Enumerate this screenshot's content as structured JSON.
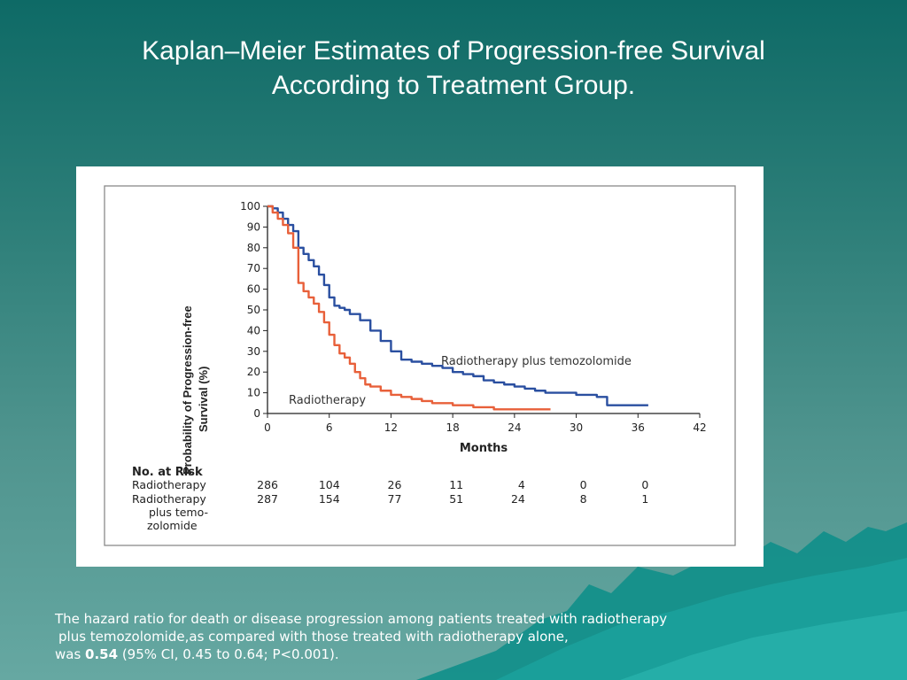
{
  "slide": {
    "title_line1": "Kaplan–Meier Estimates of Progression-free Survival",
    "title_line2": "According to Treatment Group.",
    "caption_line1": "The hazard ratio for death or disease progression among patients treated with radiotherapy",
    "caption_line2": "plus temozolomide,as compared with those treated with radiotherapy alone,",
    "caption_line3_prefix": "was ",
    "caption_hr": "0.54",
    "caption_line3_suffix": " (95% CI, 0.45 to 0.64; P<0.001)."
  },
  "colors": {
    "background_top": "#0e6a66",
    "background_bottom": "#66a8a2",
    "series_radiotherapy": "#e8603a",
    "series_combined": "#2a4fa0",
    "text": "#ffffff"
  },
  "chart_data": {
    "type": "line",
    "xlabel": "Months",
    "ylabel": "Probability of Progression-free Survival (%)",
    "ylabel_line1": "Probability of  Progression-free",
    "ylabel_line2": "Survival (%)",
    "xlim": [
      0,
      42
    ],
    "ylim": [
      0,
      100
    ],
    "xticks": [
      0,
      6,
      12,
      18,
      24,
      30,
      36,
      42
    ],
    "yticks": [
      0,
      10,
      20,
      30,
      40,
      50,
      60,
      70,
      80,
      90,
      100
    ],
    "series": [
      {
        "name": "Radiotherapy plus temozolomide",
        "color": "#2a4fa0",
        "x": [
          0,
          0.5,
          1,
          1.5,
          2,
          2.5,
          3,
          3.5,
          4,
          4.5,
          5,
          5.5,
          6,
          6.5,
          7,
          7.5,
          8,
          9,
          10,
          11,
          12,
          13,
          14,
          15,
          16,
          17,
          18,
          19,
          20,
          21,
          22,
          23,
          24,
          25,
          26,
          27,
          28,
          29,
          30,
          31,
          32,
          33,
          34,
          35,
          36,
          37
        ],
        "y": [
          100,
          99,
          97,
          94,
          91,
          88,
          80,
          77,
          74,
          71,
          67,
          62,
          56,
          52,
          51,
          50,
          48,
          45,
          40,
          35,
          30,
          26,
          25,
          24,
          23,
          22,
          20,
          19,
          18,
          16,
          15,
          14,
          13,
          12,
          11,
          10,
          10,
          10,
          9,
          9,
          8,
          4,
          4,
          4,
          4,
          4
        ]
      },
      {
        "name": "Radiotherapy",
        "color": "#e8603a",
        "x": [
          0,
          0.5,
          1,
          1.5,
          2,
          2.5,
          3,
          3.5,
          4,
          4.5,
          5,
          5.5,
          6,
          6.5,
          7,
          7.5,
          8,
          8.5,
          9,
          9.5,
          10,
          11,
          12,
          13,
          14,
          15,
          16,
          17,
          18,
          19,
          20,
          21,
          22,
          23,
          24,
          25,
          26,
          27,
          27.5
        ],
        "y": [
          100,
          97,
          94,
          91,
          87,
          80,
          63,
          59,
          56,
          53,
          49,
          44,
          38,
          33,
          29,
          27,
          24,
          20,
          17,
          14,
          13,
          11,
          9,
          8,
          7,
          6,
          5,
          5,
          4,
          4,
          3,
          3,
          2,
          2,
          2,
          2,
          2,
          2,
          2
        ]
      }
    ],
    "annotations": [
      "Radiotherapy plus temozolomide",
      "Radiotherapy"
    ],
    "risk_table": {
      "header": "No. at Risk",
      "times": [
        0,
        6,
        12,
        18,
        24,
        30,
        36
      ],
      "rows": [
        {
          "label_lines": [
            "Radiotherapy"
          ],
          "values": [
            286,
            104,
            26,
            11,
            4,
            0,
            0
          ]
        },
        {
          "label_lines": [
            "Radiotherapy",
            "plus temo-",
            "zolomide"
          ],
          "values": [
            287,
            154,
            77,
            51,
            24,
            8,
            1
          ]
        }
      ]
    },
    "grid": false
  }
}
